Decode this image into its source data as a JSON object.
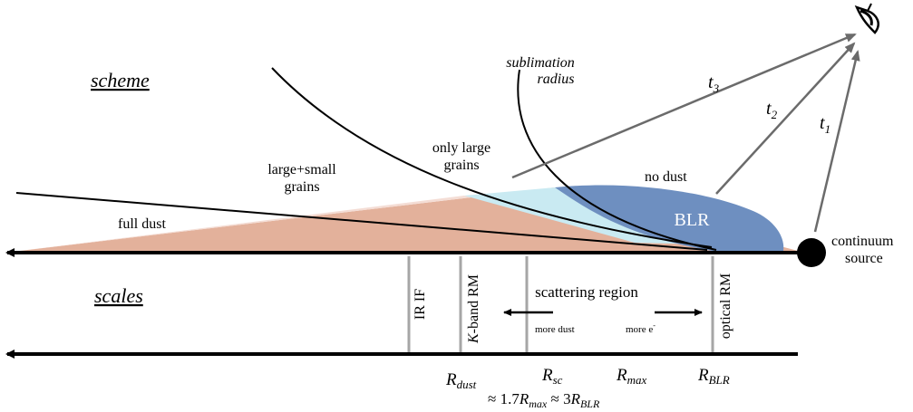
{
  "headings": {
    "scheme": "scheme",
    "scales": "scales"
  },
  "labels": {
    "sublimation_line1": "sublimation",
    "sublimation_line2": "radius",
    "only_large_line1": "only large",
    "only_large_line2": "grains",
    "large_small_line1": "large+small",
    "large_small_line2": "grains",
    "full_dust": "full dust",
    "no_dust": "no dust",
    "blr": "BLR",
    "continuum_line1": "continuum",
    "continuum_line2": "source"
  },
  "times": {
    "t1": {
      "base": "t",
      "sub": "1"
    },
    "t2": {
      "base": "t",
      "sub": "2"
    },
    "t3": {
      "base": "t",
      "sub": "3"
    }
  },
  "methods": {
    "ir_if": "IR IF",
    "kband_prefix": "K",
    "kband_suffix": "-band RM",
    "optical_rm": "optical RM"
  },
  "scattering": {
    "title": "scattering region",
    "more_dust": "more dust",
    "more_e": "more e",
    "more_e_sup": "-"
  },
  "radii": {
    "r_dust": {
      "base": "R",
      "sub": "dust"
    },
    "r_sc": {
      "base": "R",
      "sub": "sc"
    },
    "r_max": {
      "base": "R",
      "sub": "max"
    },
    "r_blr": {
      "base": "R",
      "sub": "BLR"
    }
  },
  "relation": {
    "approx1": "≈ 1.7",
    "r_max_base": "R",
    "r_max_sub": "max",
    "approx2": " ≈ 3",
    "r_blr_base": "R",
    "r_blr_sub": "BLR"
  },
  "colors": {
    "full_dust": "#e3b19b",
    "large_small": "#f4ddd5",
    "only_large": "#c9eaf2",
    "blr": "#6e8fc0",
    "arrow_gray": "#6b6b6b",
    "tick_gray": "#a6a6a6",
    "axis": "#000000"
  },
  "icons": {
    "observer": "eye-icon",
    "source": "continuum-source-dot"
  }
}
